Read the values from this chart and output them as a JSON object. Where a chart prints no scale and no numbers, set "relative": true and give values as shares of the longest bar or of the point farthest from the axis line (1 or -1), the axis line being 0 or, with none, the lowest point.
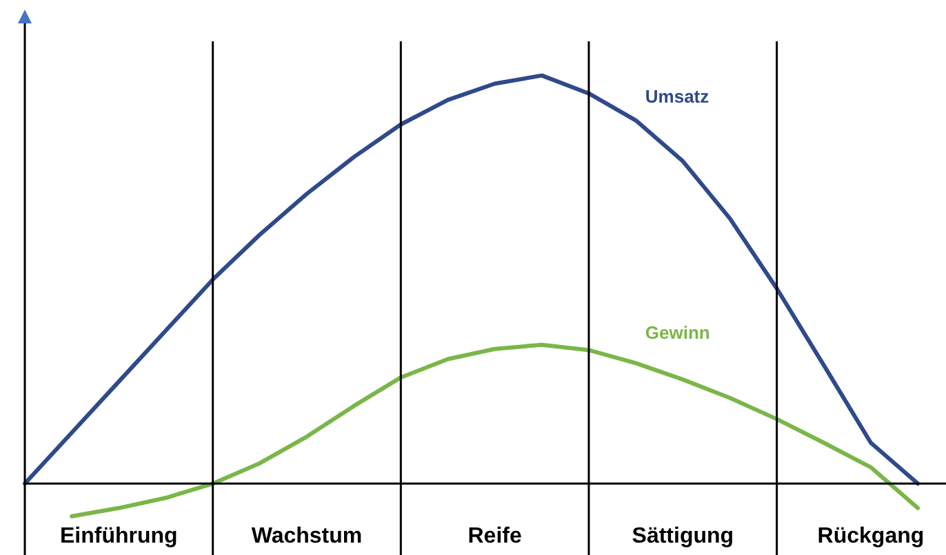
{
  "chart_data": {
    "type": "line",
    "relative": true,
    "tick_labels": "x",
    "grid": "x",
    "legend": false,
    "marker": "none",
    "line_style": "solid",
    "categories": [
      null,
      null,
      "Einführung",
      null,
      null,
      null,
      "Wachstum",
      null,
      null,
      null,
      "Reife",
      null,
      null,
      null,
      "Sättigung",
      null,
      null,
      null,
      "Rückgang",
      null
    ],
    "series": [
      {
        "name": "Umsatz",
        "color": "#2e4a8a",
        "values": [
          0,
          0.125,
          0.25,
          0.375,
          0.5,
          0.61,
          0.71,
          0.8,
          0.88,
          0.94,
          0.98,
          1,
          0.956,
          0.89,
          0.79,
          0.65,
          0.478,
          0.29,
          0.1,
          0
        ]
      },
      {
        "name": "Gewinn",
        "color": "#7ab648",
        "values": [
          null,
          -0.08,
          -0.06,
          -0.035,
          0,
          0.05,
          0.115,
          0.19,
          0.26,
          0.305,
          0.33,
          0.34,
          0.327,
          0.295,
          0.255,
          0.21,
          0.158,
          0.1,
          0.04,
          -0.06
        ]
      }
    ]
  }
}
